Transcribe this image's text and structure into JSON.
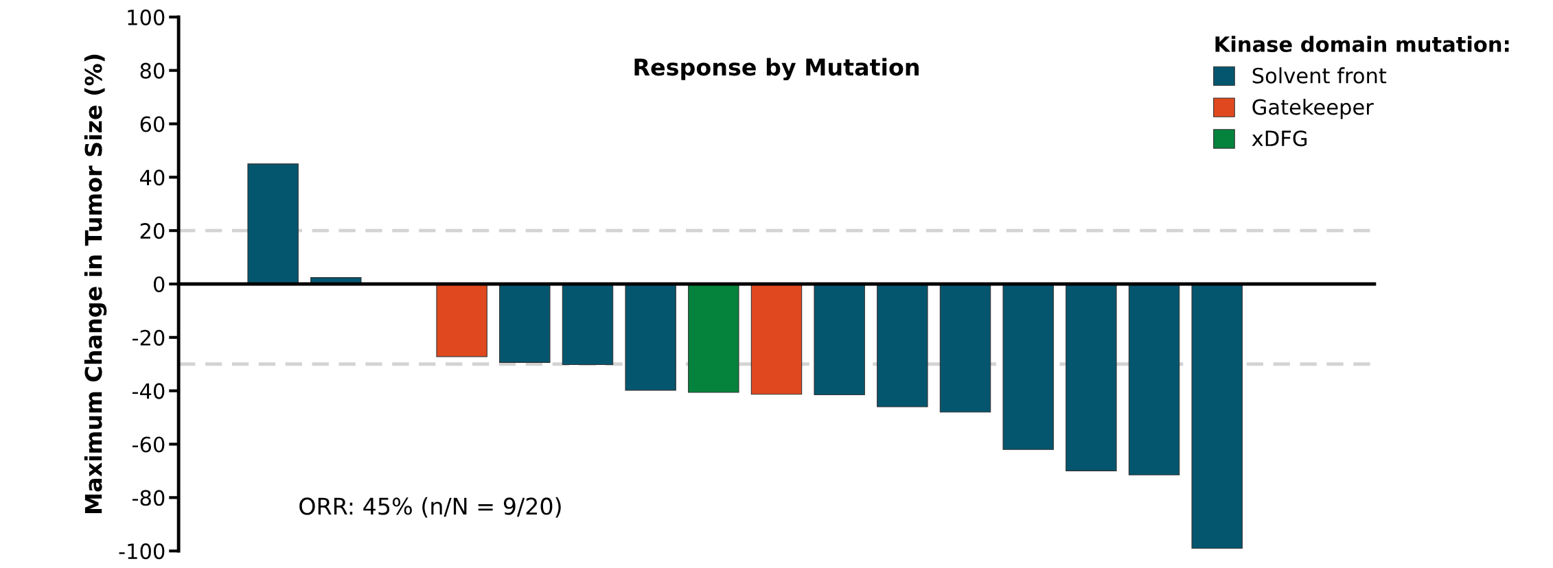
{
  "chart_data": {
    "type": "bar",
    "title": "Response by Mutation",
    "ylabel": "Maximum Change in Tumor Size (%)",
    "legend_title": "Kinase domain mutation:",
    "categories": [
      null,
      null,
      null,
      null,
      null,
      null,
      null,
      null,
      null,
      null,
      null,
      null,
      null,
      null,
      null,
      null,
      null,
      null,
      null
    ],
    "series": [
      {
        "name": "Solvent front",
        "color": "#04566f",
        "values": [
          null,
          45,
          2.4,
          null,
          null,
          -29.4,
          -30.2,
          -39.8,
          null,
          null,
          -41.5,
          -46,
          -48,
          -62,
          -70,
          -71.5,
          -99,
          null,
          null
        ]
      },
      {
        "name": "Gatekeeper",
        "color": "#e0491f",
        "values": [
          null,
          null,
          null,
          null,
          -27.2,
          null,
          null,
          null,
          null,
          -41.3,
          null,
          null,
          null,
          null,
          null,
          null,
          null,
          null,
          null
        ]
      },
      {
        "name": "xDFG",
        "color": "#05833d",
        "values": [
          null,
          null,
          null,
          null,
          null,
          null,
          null,
          null,
          -40.6,
          null,
          null,
          null,
          null,
          null,
          null,
          null,
          null,
          null,
          null
        ]
      }
    ],
    "ylim": [
      -100,
      100
    ],
    "yticks": [
      -100,
      -80,
      -60,
      -40,
      -20,
      0,
      20,
      40,
      60,
      80,
      100
    ],
    "ref_lines": [
      {
        "axis": "y",
        "value": 20,
        "color": "#d3d3d3",
        "line_style": "dashed"
      },
      {
        "axis": "y",
        "value": -30,
        "color": "#d3d3d3",
        "line_style": "dashed"
      }
    ],
    "annotations": [
      "ORR: 45% (n/N = 9/20)"
    ],
    "legend": "top right",
    "grid": false,
    "tick_labels": "y"
  }
}
